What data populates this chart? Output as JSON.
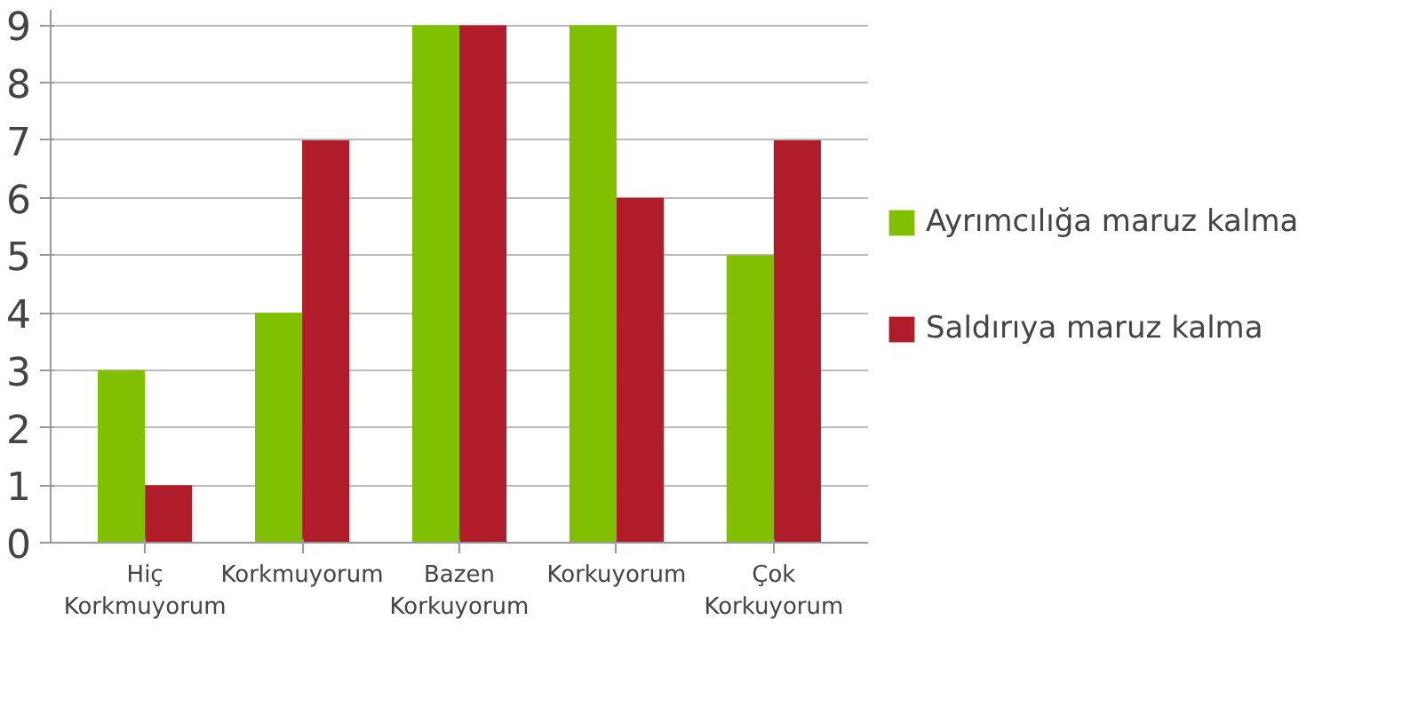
{
  "chart_data": {
    "type": "bar",
    "categories": [
      "Hiç Korkmuyorum",
      "Korkmuyorum",
      "Bazen Korkuyorum",
      "Korkuyorum",
      "Çok Korkuyorum"
    ],
    "series": [
      {
        "name": "Ayrımcılığa maruz kalma",
        "color": "#80c000",
        "values": [
          3,
          4,
          9,
          9,
          5
        ]
      },
      {
        "name": "Saldırıya maruz kalma",
        "color": "#b01c2a",
        "values": [
          1,
          7,
          9,
          6,
          7
        ]
      }
    ],
    "ylim": [
      0,
      9
    ],
    "yticks": [
      0,
      1,
      2,
      3,
      4,
      5,
      6,
      7,
      8,
      9
    ],
    "grid": "y",
    "legend": "right"
  }
}
